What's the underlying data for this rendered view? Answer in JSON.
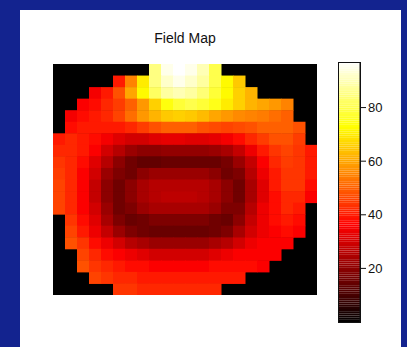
{
  "chart_data": {
    "type": "heatmap",
    "title": "Field Map",
    "tick_labels": false,
    "color_range": [
      0,
      97
    ],
    "color_ticks": [
      20,
      40,
      60,
      80
    ],
    "cells": [
      [
        null,
        null,
        null,
        null,
        null,
        null,
        null,
        null,
        85,
        95,
        97,
        95,
        90,
        80,
        null,
        null,
        null,
        null,
        null,
        null,
        null,
        null
      ],
      [
        null,
        null,
        null,
        null,
        null,
        40,
        55,
        70,
        85,
        92,
        95,
        92,
        88,
        80,
        72,
        65,
        null,
        null,
        null,
        null,
        null,
        null
      ],
      [
        null,
        null,
        null,
        35,
        40,
        48,
        60,
        72,
        82,
        88,
        90,
        88,
        84,
        78,
        72,
        66,
        62,
        null,
        null,
        null,
        null,
        null
      ],
      [
        null,
        null,
        36,
        38,
        42,
        45,
        50,
        58,
        66,
        74,
        78,
        80,
        78,
        75,
        70,
        66,
        62,
        60,
        58,
        55,
        null,
        null
      ],
      [
        null,
        35,
        38,
        40,
        42,
        46,
        52,
        58,
        62,
        65,
        66,
        65,
        63,
        60,
        58,
        56,
        55,
        54,
        52,
        50,
        null,
        null
      ],
      [
        null,
        38,
        40,
        40,
        40,
        40,
        42,
        45,
        48,
        50,
        50,
        50,
        48,
        47,
        46,
        47,
        48,
        50,
        50,
        50,
        48,
        null
      ],
      [
        40,
        42,
        40,
        38,
        35,
        32,
        30,
        30,
        32,
        33,
        33,
        32,
        32,
        33,
        35,
        38,
        42,
        45,
        48,
        48,
        45,
        null
      ],
      [
        42,
        42,
        40,
        36,
        30,
        26,
        22,
        20,
        20,
        21,
        21,
        21,
        21,
        22,
        24,
        28,
        34,
        40,
        44,
        46,
        44,
        40
      ],
      [
        44,
        42,
        38,
        32,
        26,
        20,
        16,
        14,
        14,
        15,
        15,
        15,
        15,
        15,
        17,
        22,
        28,
        36,
        42,
        45,
        44,
        40
      ],
      [
        45,
        42,
        36,
        30,
        22,
        18,
        16,
        20,
        22,
        22,
        22,
        22,
        22,
        20,
        16,
        18,
        26,
        34,
        40,
        44,
        44,
        40
      ],
      [
        46,
        42,
        36,
        28,
        20,
        16,
        20,
        24,
        26,
        26,
        26,
        26,
        26,
        24,
        20,
        16,
        24,
        32,
        40,
        44,
        44,
        38
      ],
      [
        46,
        42,
        36,
        28,
        20,
        16,
        20,
        24,
        26,
        27,
        27,
        27,
        26,
        24,
        20,
        16,
        24,
        32,
        38,
        42,
        42,
        36
      ],
      [
        46,
        42,
        36,
        30,
        22,
        16,
        18,
        22,
        24,
        24,
        24,
        24,
        24,
        22,
        18,
        18,
        26,
        34,
        38,
        42,
        40,
        null
      ],
      [
        null,
        44,
        38,
        32,
        24,
        18,
        15,
        16,
        18,
        18,
        18,
        18,
        18,
        16,
        15,
        20,
        28,
        34,
        38,
        40,
        38,
        null
      ],
      [
        null,
        46,
        40,
        34,
        28,
        22,
        18,
        16,
        15,
        15,
        15,
        15,
        15,
        16,
        18,
        24,
        30,
        34,
        36,
        38,
        36,
        null
      ],
      [
        null,
        48,
        44,
        38,
        34,
        30,
        26,
        24,
        22,
        22,
        22,
        22,
        22,
        24,
        26,
        30,
        34,
        36,
        36,
        36,
        null,
        null
      ],
      [
        null,
        null,
        46,
        42,
        38,
        36,
        34,
        32,
        30,
        30,
        30,
        30,
        30,
        32,
        34,
        36,
        36,
        36,
        36,
        null,
        null,
        null
      ],
      [
        null,
        null,
        48,
        44,
        42,
        40,
        38,
        38,
        36,
        36,
        36,
        36,
        36,
        38,
        38,
        38,
        38,
        36,
        null,
        null,
        null,
        null
      ],
      [
        null,
        null,
        null,
        46,
        44,
        42,
        42,
        40,
        40,
        40,
        40,
        40,
        40,
        40,
        40,
        40,
        null,
        null,
        null,
        null,
        null,
        null
      ],
      [
        null,
        null,
        null,
        null,
        null,
        44,
        44,
        42,
        42,
        42,
        42,
        42,
        42,
        42,
        null,
        null,
        null,
        null,
        null,
        null,
        null,
        null
      ]
    ]
  }
}
